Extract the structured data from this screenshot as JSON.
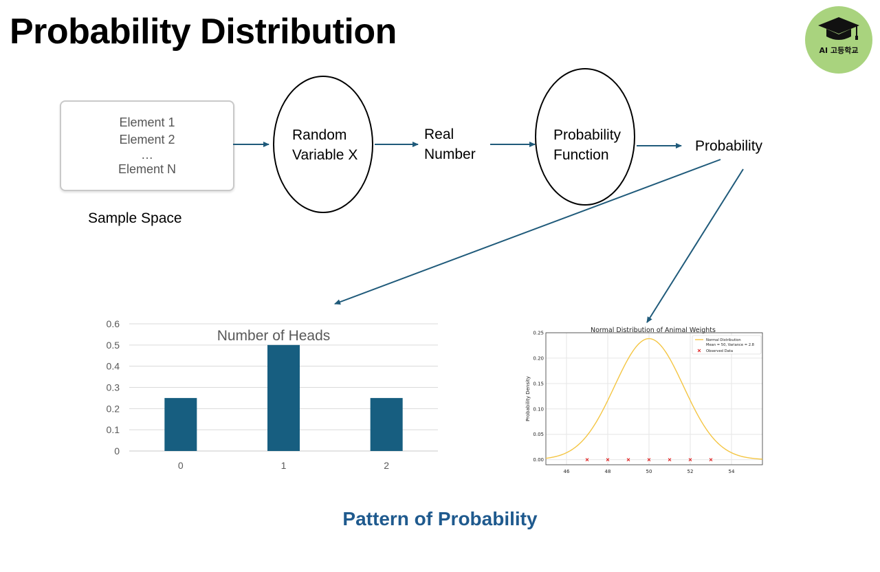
{
  "title": "Probability Distribution",
  "logo": {
    "text": "AI 고등학교",
    "icon": "graduation-cap-icon"
  },
  "sample_space": {
    "elements": [
      "Element 1",
      "Element 2",
      "…",
      "Element N"
    ],
    "label": "Sample Space"
  },
  "nodes": {
    "random_variable": [
      "Random",
      "Variable X"
    ],
    "real_number": [
      "Real",
      "Number"
    ],
    "probability_function": [
      "Probability",
      "Function"
    ],
    "probability": "Probability"
  },
  "footer_label": "Pattern of Probability",
  "colors": {
    "arrow": "#1f5a7a",
    "bar": "#175e80",
    "curve": "#f4c542",
    "observed": "#e02020",
    "pattern": "#1f5a8e"
  },
  "chart_data": [
    {
      "type": "bar",
      "title": "Number of Heads",
      "categories": [
        "0",
        "1",
        "2"
      ],
      "values": [
        0.25,
        0.5,
        0.25
      ],
      "yticks": [
        "0",
        "0.1",
        "0.2",
        "0.3",
        "0.4",
        "0.5",
        "0.6"
      ],
      "ylim": [
        0,
        0.6
      ],
      "grid": true
    },
    {
      "type": "line",
      "title": "Normal Distribution of Animal Weights",
      "ylabel": "Probability Density",
      "xlabel": "",
      "xlim": [
        45,
        55.5
      ],
      "ylim": [
        -0.01,
        0.25
      ],
      "xticks": [
        "46",
        "48",
        "50",
        "52",
        "54"
      ],
      "yticks": [
        "0.00",
        "0.05",
        "0.10",
        "0.15",
        "0.20",
        "0.25"
      ],
      "mean": 50,
      "variance": 2.8,
      "series": [
        {
          "name": "Normal Distribution",
          "description": "Mean = 50, Variance = 2.8"
        },
        {
          "name": "Observed Data",
          "x": [
            47,
            48,
            49,
            50,
            51,
            52,
            53
          ],
          "y": [
            0,
            0,
            0,
            0,
            0,
            0,
            0
          ]
        }
      ],
      "legend": "top-right",
      "grid": true
    }
  ]
}
